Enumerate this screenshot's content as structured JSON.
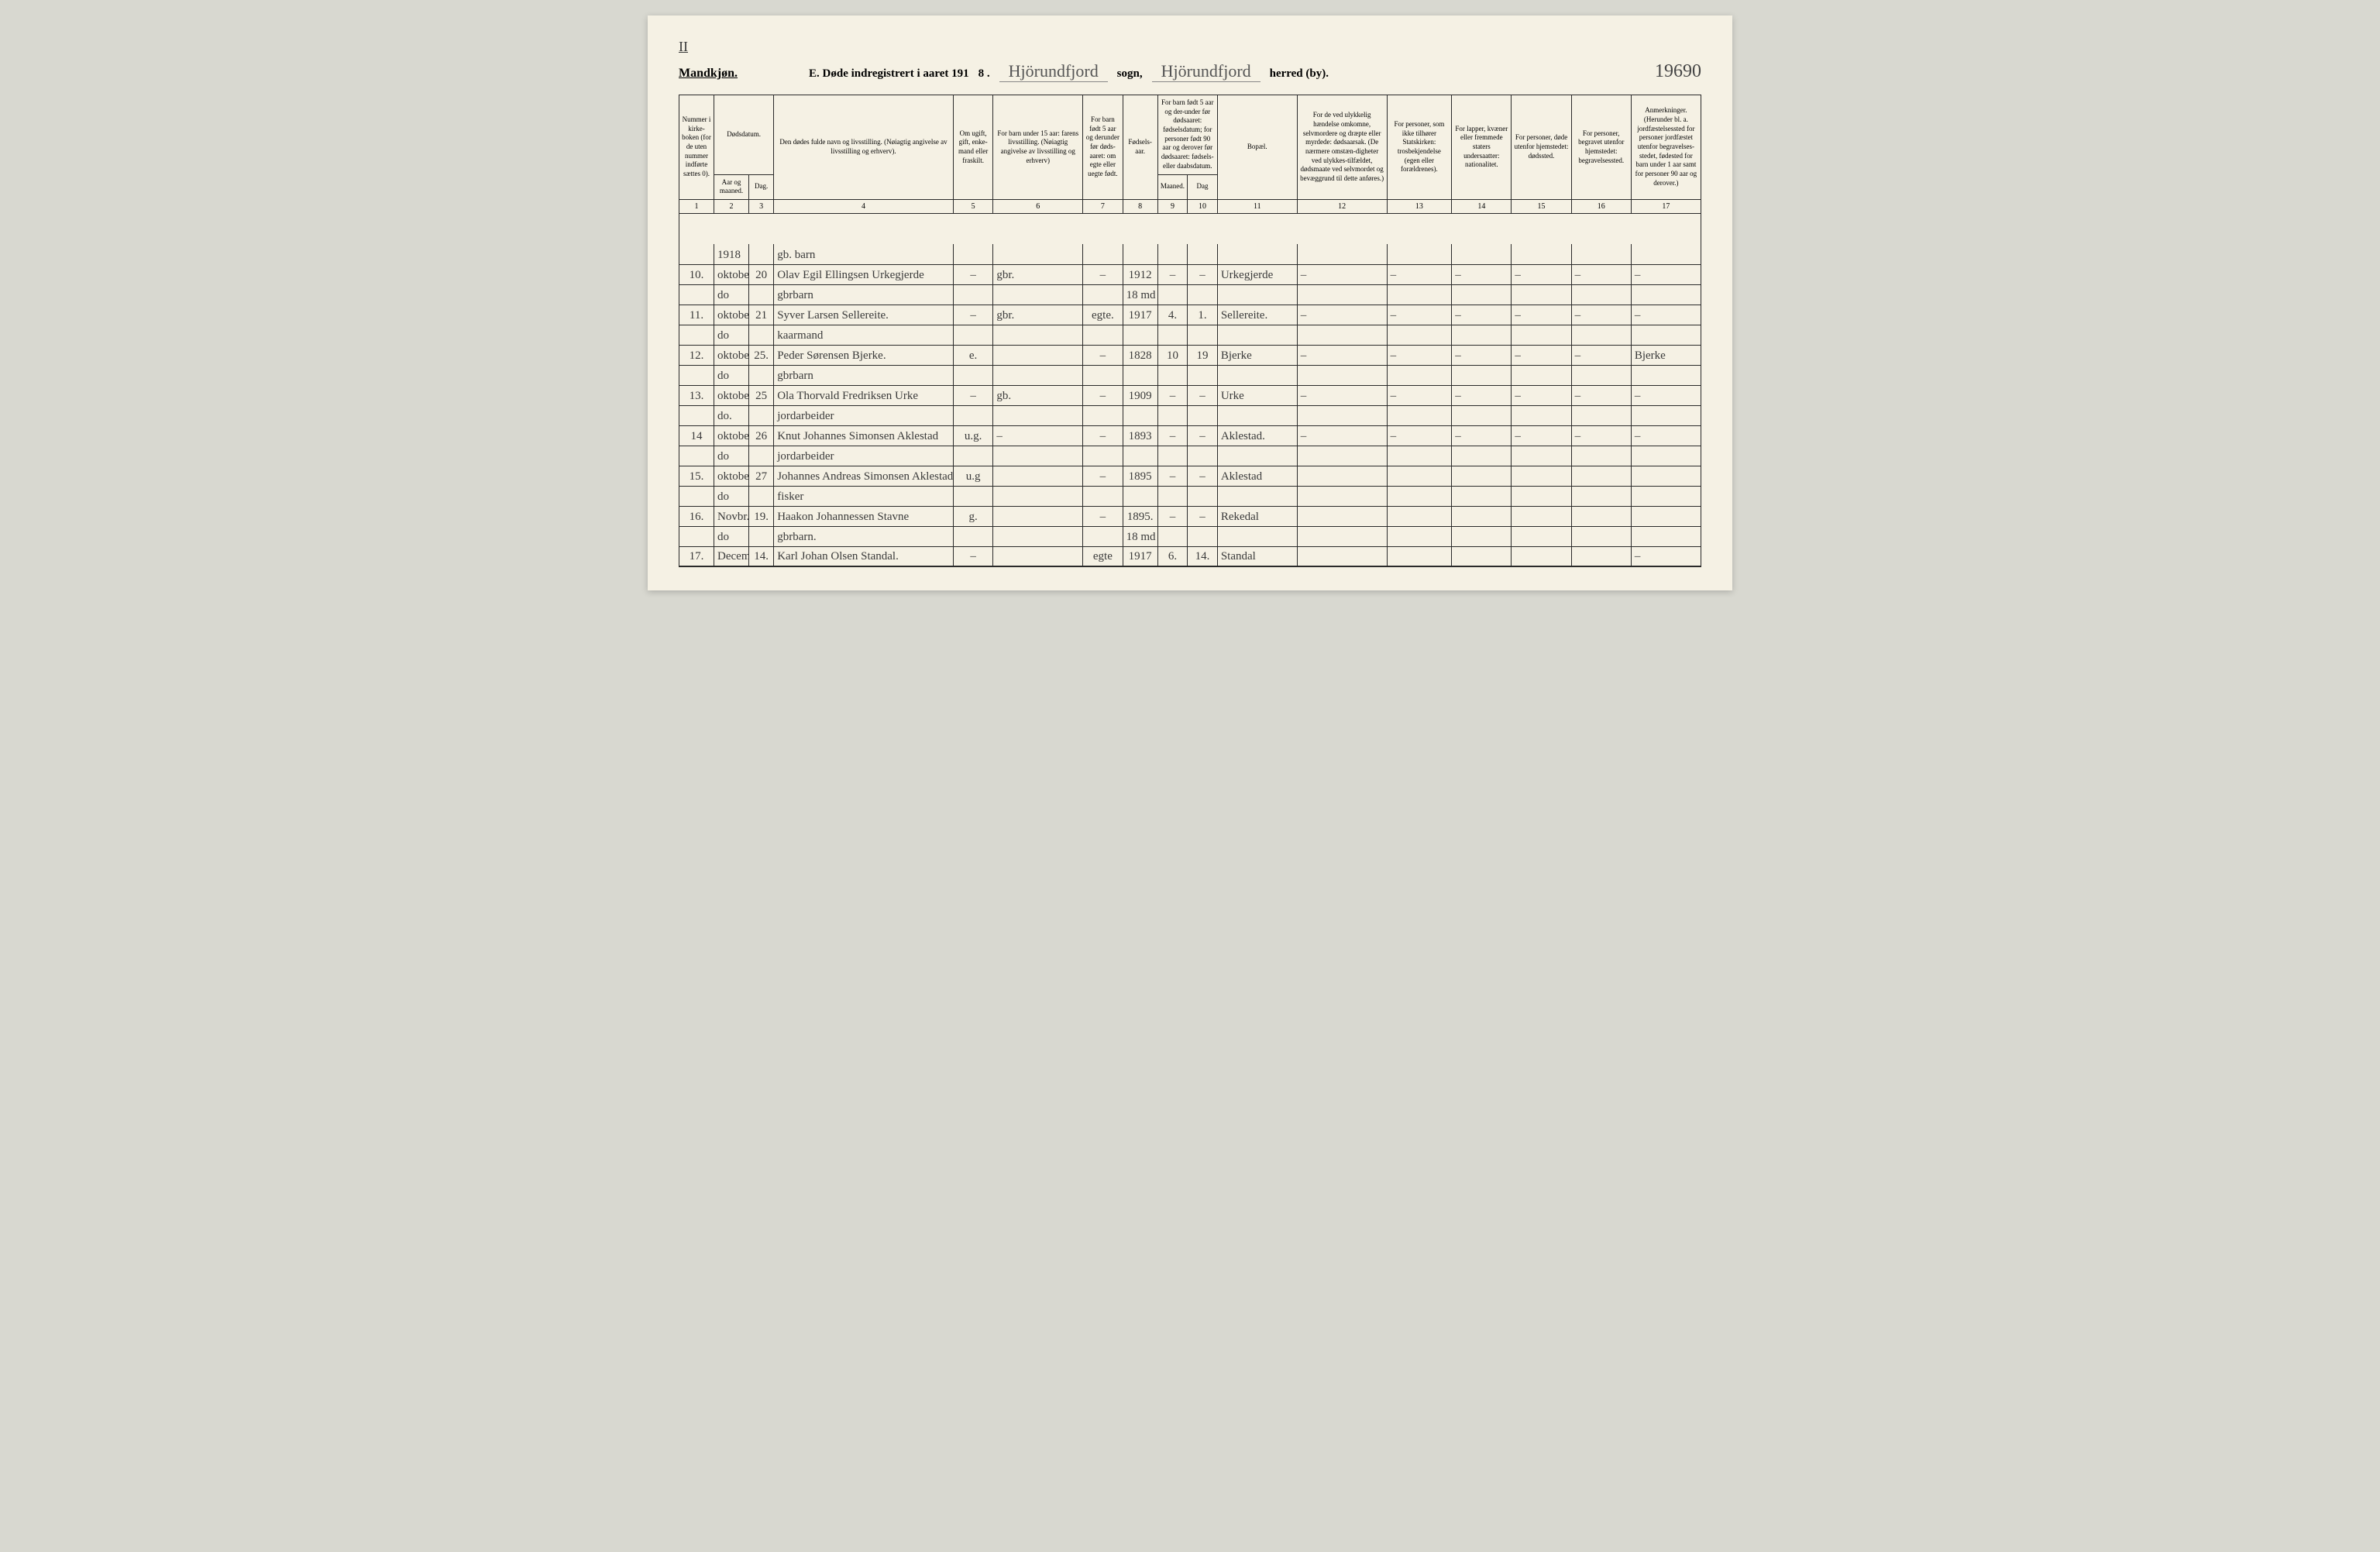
{
  "top": {
    "roman": "II"
  },
  "header": {
    "gender": "Mandkjøn.",
    "title_prefix": "E.  Døde indregistrert i aaret 191",
    "year_suffix": "8 .",
    "parish": "Hjörundfjord",
    "sogn": "sogn,",
    "district": "Hjörundfjord",
    "herred": "herred (by).",
    "pagenum": "19690"
  },
  "columns": {
    "h1": "Nummer i kirke-boken (for de uten nummer indførte sættes 0).",
    "h2top": "Dødsdatum.",
    "h2a": "Aar og maaned.",
    "h2b": "Dag.",
    "h4": "Den dødes fulde navn og livsstilling. (Nøiagtig angivelse av livsstilling og erhverv).",
    "h5": "Om ugift, gift, enke-mand eller fraskilt.",
    "h6": "For barn under 15 aar: farens livsstilling. (Nøiagtig angivelse av livsstilling og erhverv)",
    "h7": "For barn født 5 aar og derunder før døds-aaret: om egte eller uegte født.",
    "h8": "Fødsels-aar.",
    "h9top": "For barn født 5 aar og der-under før dødsaaret: fødselsdatum; for personer født 90 aar og derover før dødsaaret: fødsels- eller daabsdatum.",
    "h9a": "Maaned.",
    "h9b": "Dag",
    "h11": "Bopæl.",
    "h12": "For de ved ulykkelig hændelse omkomne, selvmordere og dræpte eller myrdede: dødsaarsak. (De nærmere omstæn-digheter ved ulykkes-tilfældet, dødsmaate ved selvmordet og bevæggrund til dette anføres.)",
    "h13": "For personer, som ikke tilhører Statskirken: trosbekjendelse (egen eller forældrenes).",
    "h14": "For lapper, kvæner eller fremmede staters undersaatter: nationalitet.",
    "h15": "For personer, døde utenfor hjemstedet: dødssted.",
    "h16": "For personer, begravet utenfor hjemstedet: begravelsessted.",
    "h17": "Anmerkninger. (Herunder bl. a. jordfæstelsessted for personer jordfæstet utenfor begravelses-stedet, fødested for barn under 1 aar samt for personer 90 aar og derover.)"
  },
  "colnums": [
    "1",
    "2",
    "3",
    "4",
    "5",
    "6",
    "7",
    "8",
    "9",
    "10",
    "11",
    "12",
    "13",
    "14",
    "15",
    "16",
    "17"
  ],
  "rows": [
    {
      "n": "",
      "m": "1918",
      "d": "",
      "name": "gb. barn",
      "c5": "",
      "c6": "",
      "c7": "",
      "c8": "",
      "c9": "",
      "c10": "",
      "c11": "",
      "c12": "",
      "c13": "",
      "c14": "",
      "c15": "",
      "c16": "",
      "c17": ""
    },
    {
      "n": "10.",
      "m": "oktober",
      "d": "20",
      "name": "Olav Egil Ellingsen Urkegjerde",
      "c5": "–",
      "c6": "gbr.",
      "c7": "–",
      "c8": "1912",
      "c9": "–",
      "c10": "–",
      "c11": "Urkegjerde",
      "c12": "–",
      "c13": "–",
      "c14": "–",
      "c15": "–",
      "c16": "–",
      "c17": "–"
    },
    {
      "n": "",
      "m": "do",
      "d": "",
      "name": "gbrbarn",
      "c5": "",
      "c6": "",
      "c7": "",
      "c8": "18 md",
      "c9": "",
      "c10": "",
      "c11": "",
      "c12": "",
      "c13": "",
      "c14": "",
      "c15": "",
      "c16": "",
      "c17": ""
    },
    {
      "n": "11.",
      "m": "oktober",
      "d": "21",
      "name": "Syver Larsen Sellereite.",
      "c5": "–",
      "c6": "gbr.",
      "c7": "egte.",
      "c8": "1917",
      "c9": "4.",
      "c10": "1.",
      "c11": "Sellereite.",
      "c12": "–",
      "c13": "–",
      "c14": "–",
      "c15": "–",
      "c16": "–",
      "c17": "–"
    },
    {
      "n": "",
      "m": "do",
      "d": "",
      "name": "kaarmand",
      "c5": "",
      "c6": "",
      "c7": "",
      "c8": "",
      "c9": "",
      "c10": "",
      "c11": "",
      "c12": "",
      "c13": "",
      "c14": "",
      "c15": "",
      "c16": "",
      "c17": ""
    },
    {
      "n": "12.",
      "m": "oktober",
      "d": "25.",
      "name": "Peder Sørensen Bjerke.",
      "c5": "e.",
      "c6": "",
      "c7": "–",
      "c8": "1828",
      "c9": "10",
      "c10": "19",
      "c11": "Bjerke",
      "c12": "–",
      "c13": "–",
      "c14": "–",
      "c15": "–",
      "c16": "–",
      "c17": "Bjerke"
    },
    {
      "n": "",
      "m": "do",
      "d": "",
      "name": "gbrbarn",
      "c5": "",
      "c6": "",
      "c7": "",
      "c8": "",
      "c9": "",
      "c10": "",
      "c11": "",
      "c12": "",
      "c13": "",
      "c14": "",
      "c15": "",
      "c16": "",
      "c17": ""
    },
    {
      "n": "13.",
      "m": "oktober",
      "d": "25",
      "name": "Ola Thorvald Fredriksen Urke",
      "c5": "–",
      "c6": "gb.",
      "c7": "–",
      "c8": "1909",
      "c9": "–",
      "c10": "–",
      "c11": "Urke",
      "c12": "–",
      "c13": "–",
      "c14": "–",
      "c15": "–",
      "c16": "–",
      "c17": "–"
    },
    {
      "n": "",
      "m": "do.",
      "d": "",
      "name": "jordarbeider",
      "c5": "",
      "c6": "",
      "c7": "",
      "c8": "",
      "c9": "",
      "c10": "",
      "c11": "",
      "c12": "",
      "c13": "",
      "c14": "",
      "c15": "",
      "c16": "",
      "c17": ""
    },
    {
      "n": "14",
      "m": "oktober",
      "d": "26",
      "name": "Knut Johannes Simonsen Aklestad",
      "c5": "u.g.",
      "c6": "–",
      "c7": "–",
      "c8": "1893",
      "c9": "–",
      "c10": "–",
      "c11": "Aklestad.",
      "c12": "–",
      "c13": "–",
      "c14": "–",
      "c15": "–",
      "c16": "–",
      "c17": "–"
    },
    {
      "n": "",
      "m": "do",
      "d": "",
      "name": "jordarbeider",
      "c5": "",
      "c6": "",
      "c7": "",
      "c8": "",
      "c9": "",
      "c10": "",
      "c11": "",
      "c12": "",
      "c13": "",
      "c14": "",
      "c15": "",
      "c16": "",
      "c17": ""
    },
    {
      "n": "15.",
      "m": "oktober",
      "d": "27",
      "name": "Johannes Andreas Simonsen Aklestad",
      "c5": "u.g",
      "c6": "",
      "c7": "–",
      "c8": "1895",
      "c9": "–",
      "c10": "–",
      "c11": "Aklestad",
      "c12": "",
      "c13": "",
      "c14": "",
      "c15": "",
      "c16": "",
      "c17": ""
    },
    {
      "n": "",
      "m": "do",
      "d": "",
      "name": "fisker",
      "c5": "",
      "c6": "",
      "c7": "",
      "c8": "",
      "c9": "",
      "c10": "",
      "c11": "",
      "c12": "",
      "c13": "",
      "c14": "",
      "c15": "",
      "c16": "",
      "c17": ""
    },
    {
      "n": "16.",
      "m": "Novbr.",
      "d": "19.",
      "name": "Haakon Johannessen Stavne",
      "c5": "g.",
      "c6": "",
      "c7": "–",
      "c8": "1895.",
      "c9": "–",
      "c10": "–",
      "c11": "Rekedal",
      "c12": "",
      "c13": "",
      "c14": "",
      "c15": "",
      "c16": "",
      "c17": ""
    },
    {
      "n": "",
      "m": "do",
      "d": "",
      "name": "gbrbarn.",
      "c5": "",
      "c6": "",
      "c7": "",
      "c8": "18 md",
      "c9": "",
      "c10": "",
      "c11": "",
      "c12": "",
      "c13": "",
      "c14": "",
      "c15": "",
      "c16": "",
      "c17": ""
    },
    {
      "n": "17.",
      "m": "December",
      "d": "14.",
      "name": "Karl Johan Olsen Standal.",
      "c5": "–",
      "c6": "",
      "c7": "egte",
      "c8": "1917",
      "c9": "6.",
      "c10": "14.",
      "c11": "Standal",
      "c12": "",
      "c13": "",
      "c14": "",
      "c15": "",
      "c16": "",
      "c17": "–"
    }
  ]
}
